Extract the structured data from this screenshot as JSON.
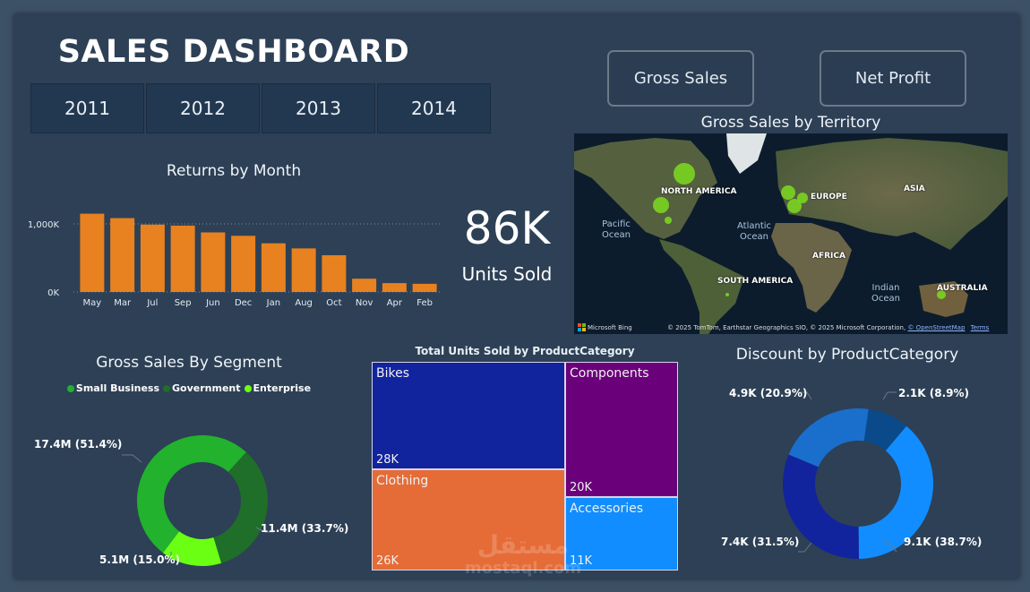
{
  "header": {
    "title": "SALES DASHBOARD"
  },
  "year_slicer": {
    "options": [
      "2011",
      "2012",
      "2013",
      "2014"
    ]
  },
  "buttons": {
    "gross_sales": "Gross Sales",
    "net_profit": "Net Profit"
  },
  "kpi": {
    "value": "86K",
    "label": "Units Sold"
  },
  "map": {
    "title": "Gross Sales by Territory",
    "labels": {
      "north_america": "NORTH AMERICA",
      "europe": "EUROPE",
      "asia": "ASIA",
      "africa": "AFRICA",
      "south_america": "SOUTH AMERICA",
      "australia": "AUSTRALIA"
    },
    "oceans": {
      "pacific": "Pacific Ocean",
      "atlantic": "Atlantic Ocean",
      "indian": "Indian Ocean"
    },
    "attribution": "© 2025 TomTom, Earthstar Geographics SIO, © 2025 Microsoft Corporation,",
    "osm_link": "© OpenStreetMap",
    "terms_link": "Terms",
    "bing": "Microsoft Bing",
    "bubble_color": "#7ddc1f"
  },
  "chart_data": [
    {
      "type": "bar",
      "title": "Returns by Month",
      "categories": [
        "May",
        "Mar",
        "Jul",
        "Sep",
        "Jun",
        "Dec",
        "Jan",
        "Aug",
        "Oct",
        "Nov",
        "Apr",
        "Feb"
      ],
      "values": [
        1150,
        1085,
        990,
        975,
        875,
        825,
        715,
        640,
        540,
        195,
        130,
        120
      ],
      "unit": "K",
      "ytick_labels": [
        "0K",
        "1,000K"
      ],
      "yticks": [
        0,
        1000
      ],
      "ylim": [
        0,
        1300
      ],
      "grid": true,
      "color": "#e8811f"
    },
    {
      "type": "pie",
      "donut": true,
      "title": "Gross Sales By Segment",
      "legend_position": "top",
      "slices": [
        {
          "name": "Small Business",
          "value": 17.4,
          "label": "17.4M (51.4%)",
          "percent": 51.4,
          "color": "#22b22e"
        },
        {
          "name": "Government",
          "value": 11.4,
          "label": "11.4M (33.7%)",
          "percent": 33.7,
          "color": "#1f6e2a"
        },
        {
          "name": "Enterprise",
          "value": 5.1,
          "label": "5.1M (15.0%)",
          "percent": 15.0,
          "color": "#6aff13"
        }
      ]
    },
    {
      "type": "treemap",
      "title": "Total Units Sold by ProductCategory",
      "items": [
        {
          "name": "Bikes",
          "value": 28,
          "label": "28K",
          "color": "#12239e"
        },
        {
          "name": "Clothing",
          "value": 26,
          "label": "26K",
          "color": "#e66c37"
        },
        {
          "name": "Components",
          "value": 20,
          "label": "20K",
          "color": "#6b007b"
        },
        {
          "name": "Accessories",
          "value": 11,
          "label": "11K",
          "color": "#118dff"
        }
      ]
    },
    {
      "type": "pie",
      "donut": true,
      "title": "Discount by ProductCategory",
      "slices": [
        {
          "value": 2.1,
          "label": "2.1K (8.9%)",
          "percent": 8.9,
          "color": "#0a4a8a"
        },
        {
          "value": 9.1,
          "label": "9.1K (38.7%)",
          "percent": 38.7,
          "color": "#118dff"
        },
        {
          "value": 7.4,
          "label": "7.4K (31.5%)",
          "percent": 31.5,
          "color": "#12239e"
        },
        {
          "value": 4.9,
          "label": "4.9K (20.9%)",
          "percent": 20.9,
          "color": "#1a6ecc"
        }
      ]
    }
  ],
  "watermark": {
    "arabic": "مستقل",
    "latin": "mostaql.com"
  }
}
